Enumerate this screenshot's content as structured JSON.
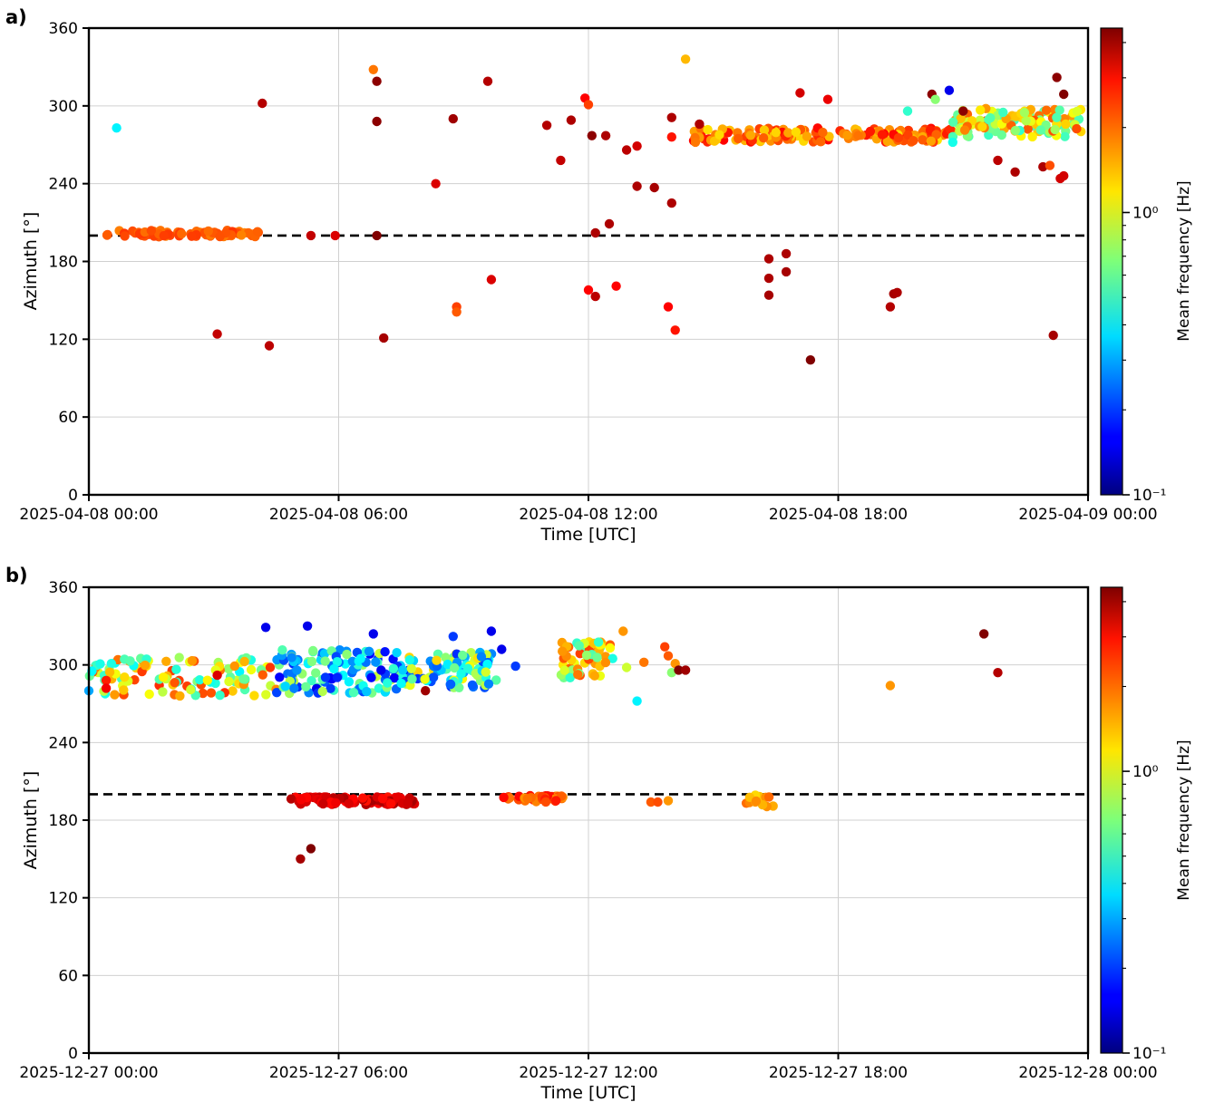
{
  "chart_data": [
    {
      "type": "scatter",
      "panel_label": "a)",
      "xlabel": "Time [UTC]",
      "ylabel": "Azimuth [°]",
      "x_range": [
        "2025-04-08 00:00",
        "2025-04-09 00:00"
      ],
      "x_tick_labels": [
        "2025-04-08 00:00",
        "2025-04-08 06:00",
        "2025-04-08 12:00",
        "2025-04-08 18:00",
        "2025-04-09 00:00"
      ],
      "ylim": [
        0,
        360
      ],
      "y_ticks": [
        0,
        60,
        120,
        180,
        240,
        300,
        360
      ],
      "grid": true,
      "reference_line_azimuth": 200,
      "colorbar": {
        "label": "Mean frequency [Hz]",
        "scale": "log",
        "range": [
          0.1,
          4.5
        ],
        "ticks": [
          "10⁰",
          "10⁻¹"
        ],
        "colormap": "jet"
      },
      "clusters": [
        {
          "time_start": "2025-04-08 00:25",
          "time_end": "2025-04-08 04:05",
          "azimuth_min": 199,
          "azimuth_max": 204,
          "count": 80,
          "freq_min": 1.7,
          "freq_max": 2.3
        },
        {
          "time_start": "2025-04-08 14:30",
          "time_end": "2025-04-08 20:45",
          "azimuth_min": 272,
          "azimuth_max": 283,
          "count": 170,
          "freq_min": 1.2,
          "freq_max": 2.8
        },
        {
          "time_start": "2025-04-08 20:45",
          "time_end": "2025-04-08 23:55",
          "azimuth_min": 276,
          "azimuth_max": 298,
          "count": 110,
          "freq_min": 0.5,
          "freq_max": 2.2
        }
      ],
      "points": [
        {
          "t": "2025-04-08 00:40",
          "az": 283,
          "f": 0.4
        },
        {
          "t": "2025-04-08 03:05",
          "az": 124,
          "f": 3.5
        },
        {
          "t": "2025-04-08 04:10",
          "az": 302,
          "f": 3.7
        },
        {
          "t": "2025-04-08 04:20",
          "az": 115,
          "f": 3.6
        },
        {
          "t": "2025-04-08 05:20",
          "az": 200,
          "f": 3.5
        },
        {
          "t": "2025-04-08 05:55",
          "az": 200,
          "f": 3.2
        },
        {
          "t": "2025-04-08 06:50",
          "az": 328,
          "f": 1.8
        },
        {
          "t": "2025-04-08 06:55",
          "az": 319,
          "f": 4.3
        },
        {
          "t": "2025-04-08 06:55",
          "az": 288,
          "f": 4.3
        },
        {
          "t": "2025-04-08 06:55",
          "az": 200,
          "f": 4.5
        },
        {
          "t": "2025-04-08 07:05",
          "az": 121,
          "f": 3.9
        },
        {
          "t": "2025-04-08 08:20",
          "az": 240,
          "f": 3.2
        },
        {
          "t": "2025-04-08 08:50",
          "az": 145,
          "f": 2.2
        },
        {
          "t": "2025-04-08 08:50",
          "az": 141,
          "f": 2.0
        },
        {
          "t": "2025-04-08 08:45",
          "az": 290,
          "f": 4.0
        },
        {
          "t": "2025-04-08 09:35",
          "az": 319,
          "f": 3.7
        },
        {
          "t": "2025-04-08 09:40",
          "az": 166,
          "f": 3.2
        },
        {
          "t": "2025-04-08 11:00",
          "az": 285,
          "f": 3.7
        },
        {
          "t": "2025-04-08 11:20",
          "az": 258,
          "f": 3.5
        },
        {
          "t": "2025-04-08 11:35",
          "az": 289,
          "f": 3.8
        },
        {
          "t": "2025-04-08 11:55",
          "az": 306,
          "f": 2.8
        },
        {
          "t": "2025-04-08 12:00",
          "az": 301,
          "f": 2.2
        },
        {
          "t": "2025-04-08 12:00",
          "az": 158,
          "f": 2.8
        },
        {
          "t": "2025-04-08 12:05",
          "az": 277,
          "f": 4.3
        },
        {
          "t": "2025-04-08 12:10",
          "az": 202,
          "f": 3.8
        },
        {
          "t": "2025-04-08 12:10",
          "az": 153,
          "f": 3.6
        },
        {
          "t": "2025-04-08 12:25",
          "az": 277,
          "f": 3.8
        },
        {
          "t": "2025-04-08 12:30",
          "az": 209,
          "f": 3.8
        },
        {
          "t": "2025-04-08 12:40",
          "az": 161,
          "f": 2.8
        },
        {
          "t": "2025-04-08 12:55",
          "az": 266,
          "f": 3.6
        },
        {
          "t": "2025-04-08 13:10",
          "az": 269,
          "f": 3.3
        },
        {
          "t": "2025-04-08 13:10",
          "az": 238,
          "f": 3.8
        },
        {
          "t": "2025-04-08 13:35",
          "az": 237,
          "f": 3.9
        },
        {
          "t": "2025-04-08 13:55",
          "az": 145,
          "f": 2.8
        },
        {
          "t": "2025-04-08 14:00",
          "az": 291,
          "f": 3.8
        },
        {
          "t": "2025-04-08 14:00",
          "az": 225,
          "f": 3.8
        },
        {
          "t": "2025-04-08 14:00",
          "az": 276,
          "f": 2.6
        },
        {
          "t": "2025-04-08 14:05",
          "az": 127,
          "f": 2.6
        },
        {
          "t": "2025-04-08 14:20",
          "az": 336,
          "f": 1.4
        },
        {
          "t": "2025-04-08 14:40",
          "az": 286,
          "f": 3.8
        },
        {
          "t": "2025-04-08 16:20",
          "az": 182,
          "f": 3.8
        },
        {
          "t": "2025-04-08 16:20",
          "az": 167,
          "f": 3.8
        },
        {
          "t": "2025-04-08 16:20",
          "az": 154,
          "f": 3.9
        },
        {
          "t": "2025-04-08 16:45",
          "az": 186,
          "f": 3.8
        },
        {
          "t": "2025-04-08 16:45",
          "az": 172,
          "f": 3.9
        },
        {
          "t": "2025-04-08 17:05",
          "az": 310,
          "f": 3.3
        },
        {
          "t": "2025-04-08 17:20",
          "az": 104,
          "f": 4.5
        },
        {
          "t": "2025-04-08 17:45",
          "az": 305,
          "f": 3.0
        },
        {
          "t": "2025-04-08 19:15",
          "az": 145,
          "f": 3.7
        },
        {
          "t": "2025-04-08 19:20",
          "az": 155,
          "f": 3.9
        },
        {
          "t": "2025-04-08 19:25",
          "az": 156,
          "f": 3.8
        },
        {
          "t": "2025-04-08 19:40",
          "az": 296,
          "f": 0.5
        },
        {
          "t": "2025-04-08 20:15",
          "az": 309,
          "f": 4.3
        },
        {
          "t": "2025-04-08 20:20",
          "az": 305,
          "f": 0.7
        },
        {
          "t": "2025-04-08 20:40",
          "az": 312,
          "f": 0.15
        },
        {
          "t": "2025-04-08 20:45",
          "az": 272,
          "f": 0.45
        },
        {
          "t": "2025-04-08 21:00",
          "az": 296,
          "f": 4.3
        },
        {
          "t": "2025-04-08 21:50",
          "az": 258,
          "f": 3.6
        },
        {
          "t": "2025-04-08 22:15",
          "az": 249,
          "f": 3.8
        },
        {
          "t": "2025-04-08 22:55",
          "az": 253,
          "f": 3.8
        },
        {
          "t": "2025-04-08 23:05",
          "az": 254,
          "f": 2.1
        },
        {
          "t": "2025-04-08 23:10",
          "az": 123,
          "f": 3.9
        },
        {
          "t": "2025-04-08 23:15",
          "az": 322,
          "f": 4.3
        },
        {
          "t": "2025-04-08 23:25",
          "az": 309,
          "f": 4.5
        },
        {
          "t": "2025-04-08 23:20",
          "az": 244,
          "f": 3.3
        },
        {
          "t": "2025-04-08 23:25",
          "az": 246,
          "f": 3.3
        }
      ]
    },
    {
      "type": "scatter",
      "panel_label": "b)",
      "xlabel": "Time [UTC]",
      "ylabel": "Azimuth [°]",
      "x_range": [
        "2025-12-27 00:00",
        "2025-12-28 00:00"
      ],
      "x_tick_labels": [
        "2025-12-27 00:00",
        "2025-12-27 06:00",
        "2025-12-27 12:00",
        "2025-12-27 18:00",
        "2025-12-28 00:00"
      ],
      "ylim": [
        0,
        360
      ],
      "y_ticks": [
        0,
        60,
        120,
        180,
        240,
        300,
        360
      ],
      "grid": true,
      "reference_line_azimuth": 200,
      "colorbar": {
        "label": "Mean frequency [Hz]",
        "scale": "log",
        "range": [
          0.1,
          4.5
        ],
        "ticks": [
          "10⁰",
          "10⁻¹"
        ],
        "colormap": "jet"
      },
      "clusters": [
        {
          "time_start": "2025-12-27 00:00",
          "time_end": "2025-12-27 04:30",
          "azimuth_min": 276,
          "azimuth_max": 306,
          "count": 110,
          "freq_min": 0.4,
          "freq_max": 2.4
        },
        {
          "time_start": "2025-12-27 04:30",
          "time_end": "2025-12-27 07:30",
          "azimuth_min": 278,
          "azimuth_max": 312,
          "count": 120,
          "freq_min": 0.15,
          "freq_max": 0.9
        },
        {
          "time_start": "2025-12-27 07:30",
          "time_end": "2025-12-27 09:50",
          "azimuth_min": 282,
          "azimuth_max": 310,
          "count": 90,
          "freq_min": 0.18,
          "freq_max": 1.3
        },
        {
          "time_start": "2025-12-27 11:20",
          "time_end": "2025-12-27 12:35",
          "azimuth_min": 290,
          "azimuth_max": 318,
          "count": 55,
          "freq_min": 0.45,
          "freq_max": 2.2
        },
        {
          "time_start": "2025-12-27 04:50",
          "time_end": "2025-12-27 07:50",
          "azimuth_min": 192,
          "azimuth_max": 198,
          "count": 100,
          "freq_min": 2.6,
          "freq_max": 3.9
        },
        {
          "time_start": "2025-12-27 09:55",
          "time_end": "2025-12-27 11:25",
          "azimuth_min": 194,
          "azimuth_max": 199,
          "count": 45,
          "freq_min": 1.6,
          "freq_max": 2.8
        },
        {
          "time_start": "2025-12-27 15:45",
          "time_end": "2025-12-27 16:30",
          "azimuth_min": 190,
          "azimuth_max": 200,
          "count": 12,
          "freq_min": 1.2,
          "freq_max": 1.9
        }
      ],
      "points": [
        {
          "t": "2025-12-27 00:00",
          "az": 280,
          "f": 0.3
        },
        {
          "t": "2025-12-27 04:15",
          "az": 329,
          "f": 0.15
        },
        {
          "t": "2025-12-27 05:15",
          "az": 330,
          "f": 0.15
        },
        {
          "t": "2025-12-27 06:50",
          "az": 324,
          "f": 0.15
        },
        {
          "t": "2025-12-27 08:45",
          "az": 322,
          "f": 0.2
        },
        {
          "t": "2025-12-27 09:40",
          "az": 326,
          "f": 0.15
        },
        {
          "t": "2025-12-27 09:55",
          "az": 312,
          "f": 0.15
        },
        {
          "t": "2025-12-27 10:15",
          "az": 299,
          "f": 0.2
        },
        {
          "t": "2025-12-27 08:05",
          "az": 280,
          "f": 4.0
        },
        {
          "t": "2025-12-27 03:05",
          "az": 292,
          "f": 3.2
        },
        {
          "t": "2025-12-27 00:25",
          "az": 288,
          "f": 2.5
        },
        {
          "t": "2025-12-27 00:25",
          "az": 282,
          "f": 2.9
        },
        {
          "t": "2025-12-27 05:05",
          "az": 150,
          "f": 3.9
        },
        {
          "t": "2025-12-27 05:20",
          "az": 158,
          "f": 4.5
        },
        {
          "t": "2025-12-27 12:50",
          "az": 326,
          "f": 1.6
        },
        {
          "t": "2025-12-27 12:55",
          "az": 298,
          "f": 0.9
        },
        {
          "t": "2025-12-27 13:10",
          "az": 272,
          "f": 0.4
        },
        {
          "t": "2025-12-27 13:20",
          "az": 302,
          "f": 1.8
        },
        {
          "t": "2025-12-27 13:50",
          "az": 314,
          "f": 2.2
        },
        {
          "t": "2025-12-27 13:55",
          "az": 307,
          "f": 2.0
        },
        {
          "t": "2025-12-27 14:05",
          "az": 301,
          "f": 1.6
        },
        {
          "t": "2025-12-27 14:00",
          "az": 294,
          "f": 0.7
        },
        {
          "t": "2025-12-27 14:10",
          "az": 296,
          "f": 4.5
        },
        {
          "t": "2025-12-27 14:20",
          "az": 296,
          "f": 4.0
        },
        {
          "t": "2025-12-27 13:30",
          "az": 194,
          "f": 2.0
        },
        {
          "t": "2025-12-27 13:40",
          "az": 194,
          "f": 2.1
        },
        {
          "t": "2025-12-27 13:55",
          "az": 195,
          "f": 1.6
        },
        {
          "t": "2025-12-27 19:15",
          "az": 284,
          "f": 1.6
        },
        {
          "t": "2025-12-27 21:30",
          "az": 324,
          "f": 4.5
        },
        {
          "t": "2025-12-27 21:50",
          "az": 294,
          "f": 3.7
        }
      ]
    }
  ]
}
